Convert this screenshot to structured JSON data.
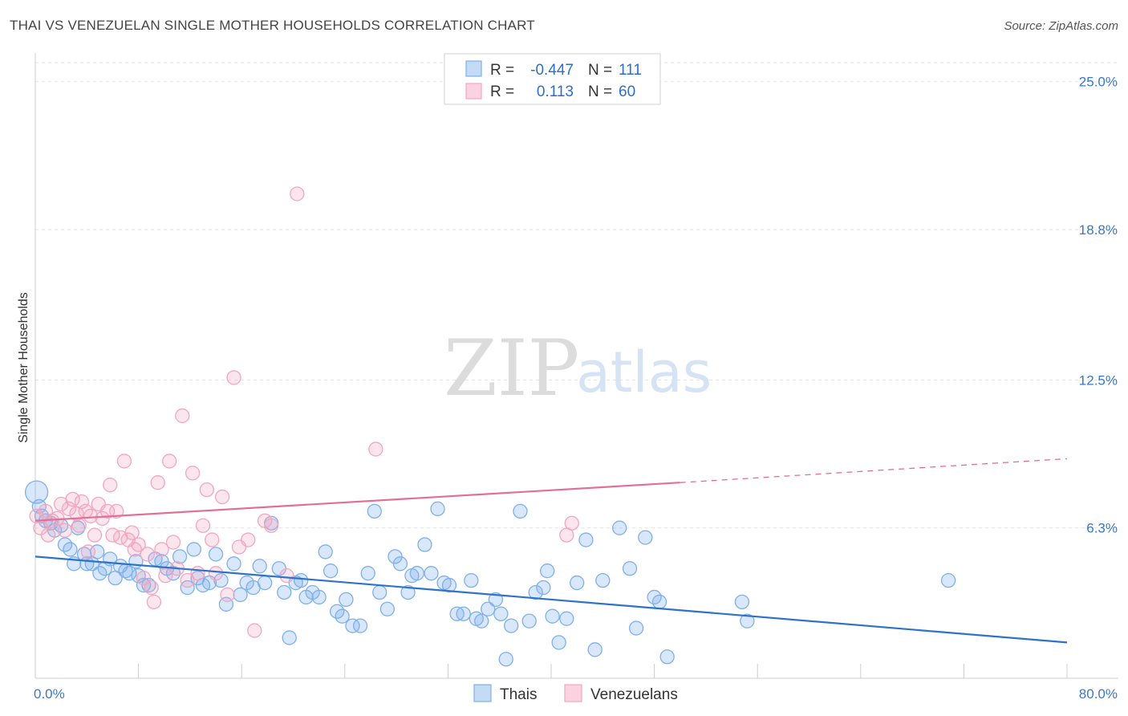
{
  "header": {
    "title": "THAI VS VENEZUELAN SINGLE MOTHER HOUSEHOLDS CORRELATION CHART",
    "source": "Source: ZipAtlas.com"
  },
  "watermark": {
    "zip": "ZIP",
    "atlas": "atlas"
  },
  "legend": {
    "rows": [
      {
        "r_label": "R =",
        "r_value": "-0.447",
        "n_label": "N =",
        "n_value": "111"
      },
      {
        "r_label": "R =",
        "r_value": "0.113",
        "n_label": "N =",
        "n_value": "60"
      }
    ]
  },
  "chart_data": {
    "type": "scatter",
    "title": "THAI VS VENEZUELAN SINGLE MOTHER HOUSEHOLDS CORRELATION CHART",
    "xlabel": "",
    "ylabel": "Single Mother Households",
    "xlim": [
      0,
      80
    ],
    "ylim": [
      0,
      26
    ],
    "x_tick_labels": [
      "0.0%",
      "80.0%"
    ],
    "y_ticks": [
      6.3,
      12.5,
      18.8,
      25.0
    ],
    "y_tick_labels": [
      "6.3%",
      "12.5%",
      "18.8%",
      "25.0%"
    ],
    "grid": true,
    "legend_position": "top-center",
    "series": [
      {
        "name": "Thais",
        "color": "#7fb0ea",
        "line_color": "#2f73c9",
        "r": -0.447,
        "n": 111,
        "trend": {
          "x": [
            0,
            80
          ],
          "y": [
            5.1,
            1.5
          ]
        },
        "points": [
          [
            0.1,
            7.8
          ],
          [
            0.3,
            7.2
          ],
          [
            0.5,
            6.8
          ],
          [
            0.8,
            6.6
          ],
          [
            1.2,
            6.5
          ],
          [
            1.5,
            6.2
          ],
          [
            2.0,
            6.4
          ],
          [
            2.3,
            5.6
          ],
          [
            2.7,
            5.4
          ],
          [
            3.0,
            4.8
          ],
          [
            3.3,
            6.3
          ],
          [
            3.8,
            5.2
          ],
          [
            4.0,
            4.8
          ],
          [
            4.4,
            4.8
          ],
          [
            4.8,
            5.3
          ],
          [
            5.0,
            4.4
          ],
          [
            5.4,
            4.6
          ],
          [
            5.8,
            5.0
          ],
          [
            6.2,
            4.2
          ],
          [
            6.6,
            4.7
          ],
          [
            7.0,
            4.5
          ],
          [
            7.3,
            4.4
          ],
          [
            7.8,
            4.9
          ],
          [
            8.0,
            4.3
          ],
          [
            8.4,
            3.9
          ],
          [
            8.8,
            3.9
          ],
          [
            9.3,
            5.0
          ],
          [
            9.8,
            4.9
          ],
          [
            10.2,
            4.6
          ],
          [
            10.7,
            4.4
          ],
          [
            11.2,
            5.1
          ],
          [
            11.8,
            3.8
          ],
          [
            12.3,
            5.4
          ],
          [
            12.6,
            4.2
          ],
          [
            13.0,
            3.9
          ],
          [
            13.5,
            4.0
          ],
          [
            14.0,
            5.2
          ],
          [
            14.4,
            4.1
          ],
          [
            14.8,
            3.1
          ],
          [
            15.4,
            4.8
          ],
          [
            15.9,
            3.5
          ],
          [
            16.4,
            4.0
          ],
          [
            16.9,
            3.8
          ],
          [
            17.4,
            4.7
          ],
          [
            17.8,
            4.0
          ],
          [
            18.3,
            6.5
          ],
          [
            18.9,
            4.6
          ],
          [
            19.3,
            3.6
          ],
          [
            19.7,
            1.7
          ],
          [
            20.2,
            4.0
          ],
          [
            20.6,
            4.1
          ],
          [
            21.0,
            3.4
          ],
          [
            21.5,
            3.6
          ],
          [
            22.0,
            3.4
          ],
          [
            22.5,
            5.3
          ],
          [
            22.9,
            4.5
          ],
          [
            23.4,
            2.8
          ],
          [
            23.8,
            2.6
          ],
          [
            24.1,
            3.3
          ],
          [
            24.6,
            2.2
          ],
          [
            25.2,
            2.2
          ],
          [
            25.8,
            4.4
          ],
          [
            26.3,
            7.0
          ],
          [
            26.7,
            3.6
          ],
          [
            27.3,
            2.9
          ],
          [
            27.9,
            5.1
          ],
          [
            28.3,
            4.8
          ],
          [
            28.9,
            3.6
          ],
          [
            29.2,
            4.3
          ],
          [
            29.6,
            4.4
          ],
          [
            30.2,
            5.6
          ],
          [
            30.7,
            4.4
          ],
          [
            31.2,
            7.1
          ],
          [
            31.7,
            4.0
          ],
          [
            32.1,
            3.9
          ],
          [
            32.7,
            2.7
          ],
          [
            33.2,
            2.7
          ],
          [
            33.8,
            4.1
          ],
          [
            34.2,
            2.5
          ],
          [
            34.6,
            2.4
          ],
          [
            35.1,
            2.9
          ],
          [
            35.7,
            3.3
          ],
          [
            36.1,
            2.7
          ],
          [
            36.5,
            0.8
          ],
          [
            36.9,
            2.2
          ],
          [
            37.6,
            7.0
          ],
          [
            38.3,
            2.4
          ],
          [
            38.8,
            3.6
          ],
          [
            39.4,
            3.8
          ],
          [
            39.7,
            4.5
          ],
          [
            40.1,
            2.6
          ],
          [
            40.6,
            1.5
          ],
          [
            41.2,
            2.5
          ],
          [
            42.0,
            4.0
          ],
          [
            42.7,
            5.8
          ],
          [
            43.4,
            1.2
          ],
          [
            44.0,
            4.1
          ],
          [
            45.3,
            6.3
          ],
          [
            46.1,
            4.6
          ],
          [
            46.6,
            2.1
          ],
          [
            47.3,
            5.9
          ],
          [
            48.0,
            3.4
          ],
          [
            48.4,
            3.2
          ],
          [
            49.0,
            0.9
          ],
          [
            54.8,
            3.2
          ],
          [
            55.2,
            2.4
          ],
          [
            70.8,
            4.1
          ]
        ]
      },
      {
        "name": "Venezuelans",
        "color": "#f2a6bf",
        "line_color": "#e0709a",
        "r": 0.113,
        "n": 60,
        "trend": {
          "x": [
            0,
            50
          ],
          "y": [
            6.6,
            8.2
          ]
        },
        "trend_dashed": {
          "x": [
            50,
            80
          ],
          "y": [
            8.2,
            9.2
          ]
        },
        "points": [
          [
            0.1,
            6.8
          ],
          [
            0.4,
            6.3
          ],
          [
            0.8,
            7.0
          ],
          [
            1.0,
            6.0
          ],
          [
            1.3,
            6.6
          ],
          [
            1.7,
            6.7
          ],
          [
            2.0,
            7.3
          ],
          [
            2.3,
            6.2
          ],
          [
            2.6,
            7.1
          ],
          [
            2.9,
            7.5
          ],
          [
            3.2,
            6.9
          ],
          [
            3.4,
            6.4
          ],
          [
            3.6,
            7.4
          ],
          [
            3.9,
            7.0
          ],
          [
            4.1,
            5.3
          ],
          [
            4.3,
            6.8
          ],
          [
            4.6,
            6.0
          ],
          [
            4.9,
            7.3
          ],
          [
            5.2,
            6.7
          ],
          [
            5.6,
            7.0
          ],
          [
            5.8,
            8.1
          ],
          [
            6.0,
            6.0
          ],
          [
            6.3,
            7.0
          ],
          [
            6.6,
            5.9
          ],
          [
            6.9,
            9.1
          ],
          [
            7.2,
            5.8
          ],
          [
            7.5,
            6.1
          ],
          [
            7.7,
            5.4
          ],
          [
            8.0,
            5.6
          ],
          [
            8.4,
            4.2
          ],
          [
            8.7,
            5.2
          ],
          [
            9.0,
            3.8
          ],
          [
            9.2,
            3.2
          ],
          [
            9.5,
            8.2
          ],
          [
            9.8,
            5.4
          ],
          [
            10.1,
            4.3
          ],
          [
            10.4,
            9.1
          ],
          [
            10.7,
            5.7
          ],
          [
            11.0,
            4.6
          ],
          [
            11.4,
            11.0
          ],
          [
            11.8,
            4.1
          ],
          [
            12.2,
            8.6
          ],
          [
            12.6,
            4.4
          ],
          [
            13.0,
            6.4
          ],
          [
            13.3,
            7.9
          ],
          [
            13.7,
            5.8
          ],
          [
            14.0,
            4.4
          ],
          [
            14.5,
            7.6
          ],
          [
            14.9,
            3.5
          ],
          [
            15.4,
            12.6
          ],
          [
            15.8,
            5.5
          ],
          [
            16.5,
            5.8
          ],
          [
            17.0,
            2.0
          ],
          [
            17.8,
            6.6
          ],
          [
            18.3,
            6.4
          ],
          [
            19.5,
            4.3
          ],
          [
            20.3,
            20.3
          ],
          [
            26.4,
            9.6
          ],
          [
            41.2,
            6.0
          ],
          [
            41.6,
            6.5
          ]
        ]
      }
    ]
  }
}
